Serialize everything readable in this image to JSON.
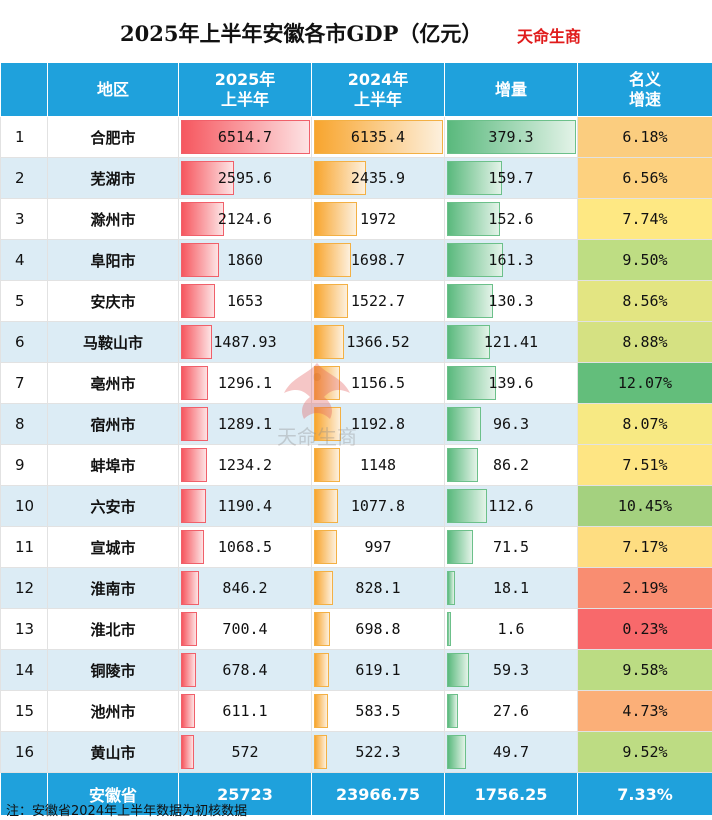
{
  "title": "2025年上半年安徽各市GDP（亿元）",
  "brand": "天命生商",
  "headers": {
    "region": "地区",
    "gdp2025_line1": "2025年",
    "gdp2025_line2": "上半年",
    "gdp2024_line1": "2024年",
    "gdp2024_line2": "上半年",
    "increase": "增量",
    "growth_line1": "名义",
    "growth_line2": "增速"
  },
  "rows": [
    {
      "rank": "1",
      "city": "合肥市",
      "gdp2025": "6514.7",
      "gdp2024": "6135.4",
      "increase": "379.3",
      "growth": "6.18%",
      "growth_color": "#fbcd7f"
    },
    {
      "rank": "2",
      "city": "芜湖市",
      "gdp2025": "2595.6",
      "gdp2024": "2435.9",
      "increase": "159.7",
      "growth": "6.56%",
      "growth_color": "#fdd17f"
    },
    {
      "rank": "3",
      "city": "滁州市",
      "gdp2025": "2124.6",
      "gdp2024": "1972",
      "increase": "152.6",
      "growth": "7.74%",
      "growth_color": "#fee883"
    },
    {
      "rank": "4",
      "city": "阜阳市",
      "gdp2025": "1860",
      "gdp2024": "1698.7",
      "increase": "161.3",
      "growth": "9.50%",
      "growth_color": "#bedd83"
    },
    {
      "rank": "5",
      "city": "安庆市",
      "gdp2025": "1653",
      "gdp2024": "1522.7",
      "increase": "130.3",
      "growth": "8.56%",
      "growth_color": "#e3e582"
    },
    {
      "rank": "6",
      "city": "马鞍山市",
      "gdp2025": "1487.93",
      "gdp2024": "1366.52",
      "increase": "121.41",
      "growth": "8.88%",
      "growth_color": "#d5e182"
    },
    {
      "rank": "7",
      "city": "亳州市",
      "gdp2025": "1296.1",
      "gdp2024": "1156.5",
      "increase": "139.6",
      "growth": "12.07%",
      "growth_color": "#63be7b"
    },
    {
      "rank": "8",
      "city": "宿州市",
      "gdp2025": "1289.1",
      "gdp2024": "1192.8",
      "increase": "96.3",
      "growth": "8.07%",
      "growth_color": "#f7e983"
    },
    {
      "rank": "9",
      "city": "蚌埠市",
      "gdp2025": "1234.2",
      "gdp2024": "1148",
      "increase": "86.2",
      "growth": "7.51%",
      "growth_color": "#fee583"
    },
    {
      "rank": "10",
      "city": "六安市",
      "gdp2025": "1190.4",
      "gdp2024": "1077.8",
      "increase": "112.6",
      "growth": "10.45%",
      "growth_color": "#a4d17f"
    },
    {
      "rank": "11",
      "city": "宣城市",
      "gdp2025": "1068.5",
      "gdp2024": "997",
      "increase": "71.5",
      "growth": "7.17%",
      "growth_color": "#fedd81"
    },
    {
      "rank": "12",
      "city": "淮南市",
      "gdp2025": "846.2",
      "gdp2024": "828.1",
      "increase": "18.1",
      "growth": "2.19%",
      "growth_color": "#f98d71"
    },
    {
      "rank": "13",
      "city": "淮北市",
      "gdp2025": "700.4",
      "gdp2024": "698.8",
      "increase": "1.6",
      "growth": "0.23%",
      "growth_color": "#f8696b"
    },
    {
      "rank": "14",
      "city": "铜陵市",
      "gdp2025": "678.4",
      "gdp2024": "619.1",
      "increase": "59.3",
      "growth": "9.58%",
      "growth_color": "#bbdc83"
    },
    {
      "rank": "15",
      "city": "池州市",
      "gdp2025": "611.1",
      "gdp2024": "583.5",
      "increase": "27.6",
      "growth": "4.73%",
      "growth_color": "#fbaf78"
    },
    {
      "rank": "16",
      "city": "黄山市",
      "gdp2025": "572",
      "gdp2024": "522.3",
      "increase": "49.7",
      "growth": "9.52%",
      "growth_color": "#bddc83"
    }
  ],
  "total": {
    "label": "安徽省",
    "gdp2025": "25723",
    "gdp2024": "23966.75",
    "increase": "1756.25",
    "growth": "7.33%"
  },
  "note": "注：安徽省2024年上半年数据为初核数据",
  "watermark_text": "天命生商",
  "colors": {
    "header_bg": "#1fa1dc",
    "stripe": "#dcecf5",
    "bar_2025": "#f6575f",
    "bar_2024": "#f8a52e",
    "bar_increase": "#5ab97d",
    "brand": "#e01b1b"
  }
}
